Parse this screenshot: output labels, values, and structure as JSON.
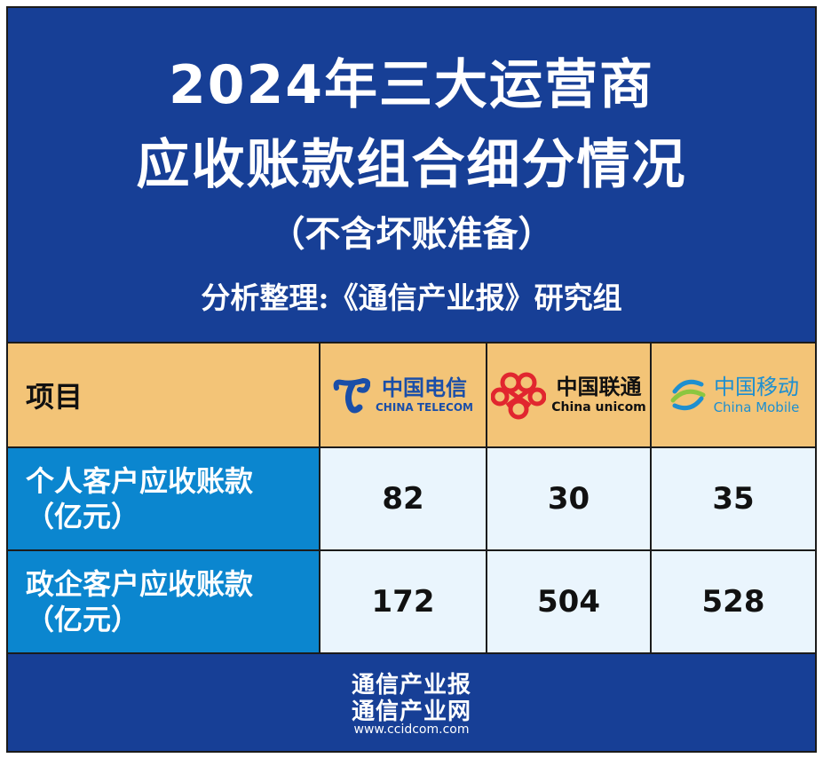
{
  "header": {
    "title_line1": "2024年三大运营商",
    "title_line2": "应收账款组合细分情况",
    "subtitle": "（不含坏账准备）",
    "credit": "分析整理:《通信产业报》研究组"
  },
  "table": {
    "header_label": "项目",
    "operators": [
      {
        "name_cn": "中国电信",
        "name_en": "CHINA TELECOM",
        "color": "#1a4ea8"
      },
      {
        "name_cn": "中国联通",
        "name_en": "China unicom",
        "color": "#e1262f"
      },
      {
        "name_cn": "中国移动",
        "name_en": "China Mobile",
        "color": "#1e8fd0"
      }
    ],
    "rows": [
      {
        "label": "个人客户应收账款",
        "unit": "（亿元）",
        "values": [
          "82",
          "30",
          "35"
        ]
      },
      {
        "label": "政企客户应收账款",
        "unit": "（亿元）",
        "values": [
          "172",
          "504",
          "528"
        ]
      }
    ]
  },
  "footer": {
    "line1": "通信产业报",
    "line2": "通信产业网",
    "url": "www.ccidcom.com"
  },
  "colors": {
    "header_bg": "#173f96",
    "table_header_bg": "#f3c477",
    "row_label_bg": "#0b86cf",
    "cell_bg": "#eaf5fd"
  }
}
